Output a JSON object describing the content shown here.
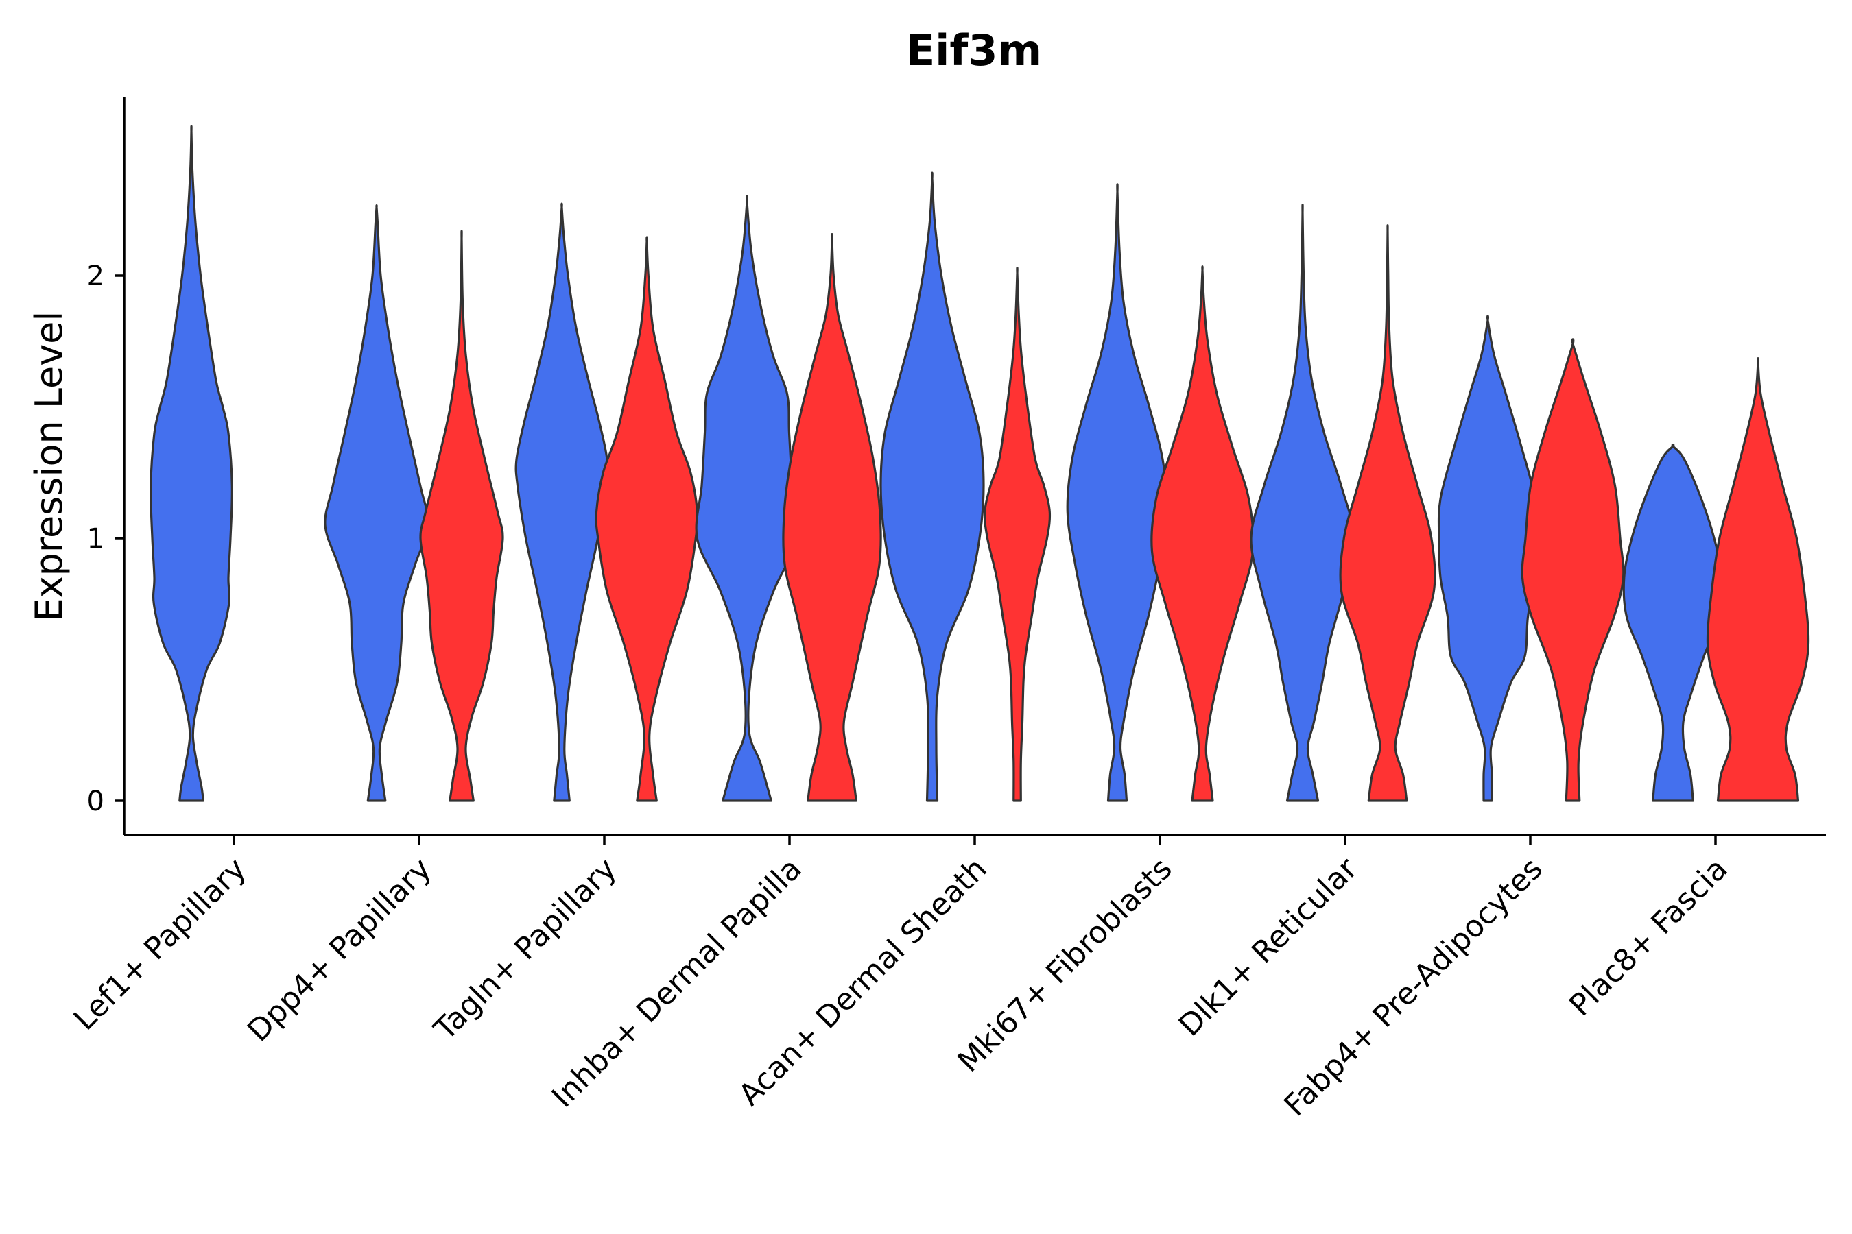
{
  "chart_data": {
    "type": "violin",
    "title": "Eif3m",
    "xlabel": "",
    "ylabel": "Expression Level",
    "ylim": [
      -0.13,
      2.7
    ],
    "yticks": [
      0,
      1,
      2
    ],
    "grid": false,
    "legend": "none",
    "colors": {
      "group_a": "#4470EE",
      "group_b": "#FF3333",
      "outline": "#333333"
    },
    "categories": [
      "Lef1+ Papillary",
      "Dpp4+ Papillary",
      "Tagln+ Papillary",
      "Inhba+ Dermal Papilla",
      "Acan+ Dermal Sheath",
      "Mki67+ Fibroblasts",
      "Dlk1+ Reticular",
      "Fabp4+ Pre-Adipocytes",
      "Plac8+ Fascia"
    ],
    "violins": [
      {
        "category": "Lef1+ Papillary",
        "group": "a",
        "max": 2.55,
        "profile": [
          [
            0.0,
            0.23
          ],
          [
            0.05,
            0.2
          ],
          [
            0.15,
            0.1
          ],
          [
            0.25,
            0.03
          ],
          [
            0.35,
            0.1
          ],
          [
            0.5,
            0.3
          ],
          [
            0.6,
            0.55
          ],
          [
            0.75,
            0.73
          ],
          [
            0.85,
            0.72
          ],
          [
            1.0,
            0.76
          ],
          [
            1.2,
            0.79
          ],
          [
            1.4,
            0.72
          ],
          [
            1.5,
            0.61
          ],
          [
            1.6,
            0.48
          ],
          [
            1.8,
            0.32
          ],
          [
            2.0,
            0.18
          ],
          [
            2.2,
            0.08
          ],
          [
            2.4,
            0.02
          ],
          [
            2.55,
            0.0
          ]
        ]
      },
      {
        "category": "Dpp4+ Papillary",
        "group": "a",
        "max": 2.26,
        "profile": [
          [
            0.0,
            0.17
          ],
          [
            0.1,
            0.1
          ],
          [
            0.2,
            0.06
          ],
          [
            0.3,
            0.18
          ],
          [
            0.45,
            0.4
          ],
          [
            0.6,
            0.48
          ],
          [
            0.75,
            0.52
          ],
          [
            0.9,
            0.75
          ],
          [
            1.05,
            1.0
          ],
          [
            1.2,
            0.85
          ],
          [
            1.4,
            0.62
          ],
          [
            1.6,
            0.4
          ],
          [
            1.8,
            0.22
          ],
          [
            2.0,
            0.08
          ],
          [
            2.2,
            0.02
          ],
          [
            2.26,
            0.0
          ]
        ]
      },
      {
        "category": "Dpp4+ Papillary",
        "group": "b",
        "max": 2.14,
        "profile": [
          [
            0.0,
            0.23
          ],
          [
            0.08,
            0.17
          ],
          [
            0.2,
            0.08
          ],
          [
            0.32,
            0.2
          ],
          [
            0.45,
            0.42
          ],
          [
            0.6,
            0.58
          ],
          [
            0.72,
            0.62
          ],
          [
            0.85,
            0.68
          ],
          [
            1.0,
            0.8
          ],
          [
            1.1,
            0.7
          ],
          [
            1.3,
            0.45
          ],
          [
            1.5,
            0.22
          ],
          [
            1.7,
            0.08
          ],
          [
            1.9,
            0.02
          ],
          [
            2.14,
            0.0
          ]
        ]
      },
      {
        "category": "Tagln+ Papillary",
        "group": "a",
        "max": 2.26,
        "profile": [
          [
            0.0,
            0.15
          ],
          [
            0.1,
            0.1
          ],
          [
            0.2,
            0.05
          ],
          [
            0.4,
            0.12
          ],
          [
            0.6,
            0.28
          ],
          [
            0.8,
            0.48
          ],
          [
            1.0,
            0.7
          ],
          [
            1.2,
            0.86
          ],
          [
            1.3,
            0.88
          ],
          [
            1.45,
            0.72
          ],
          [
            1.6,
            0.52
          ],
          [
            1.8,
            0.28
          ],
          [
            2.0,
            0.12
          ],
          [
            2.15,
            0.04
          ],
          [
            2.26,
            0.0
          ]
        ]
      },
      {
        "category": "Tagln+ Papillary",
        "group": "b",
        "max": 2.13,
        "profile": [
          [
            0.0,
            0.19
          ],
          [
            0.1,
            0.12
          ],
          [
            0.25,
            0.05
          ],
          [
            0.4,
            0.18
          ],
          [
            0.6,
            0.45
          ],
          [
            0.8,
            0.78
          ],
          [
            1.0,
            0.95
          ],
          [
            1.1,
            0.98
          ],
          [
            1.25,
            0.85
          ],
          [
            1.4,
            0.58
          ],
          [
            1.6,
            0.35
          ],
          [
            1.8,
            0.12
          ],
          [
            2.0,
            0.03
          ],
          [
            2.13,
            0.0
          ]
        ]
      },
      {
        "category": "Inhba+ Dermal Papilla",
        "group": "a",
        "max": 2.28,
        "profile": [
          [
            0.0,
            0.47
          ],
          [
            0.05,
            0.4
          ],
          [
            0.15,
            0.25
          ],
          [
            0.25,
            0.05
          ],
          [
            0.4,
            0.04
          ],
          [
            0.6,
            0.18
          ],
          [
            0.8,
            0.52
          ],
          [
            1.0,
            0.97
          ],
          [
            1.2,
            0.88
          ],
          [
            1.4,
            0.82
          ],
          [
            1.55,
            0.78
          ],
          [
            1.7,
            0.5
          ],
          [
            1.9,
            0.25
          ],
          [
            2.1,
            0.08
          ],
          [
            2.28,
            0.0
          ]
        ]
      },
      {
        "category": "Inhba+ Dermal Papilla",
        "group": "b",
        "max": 2.14,
        "profile": [
          [
            0.0,
            0.47
          ],
          [
            0.1,
            0.4
          ],
          [
            0.2,
            0.28
          ],
          [
            0.3,
            0.23
          ],
          [
            0.45,
            0.4
          ],
          [
            0.7,
            0.68
          ],
          [
            0.9,
            0.92
          ],
          [
            1.1,
            0.93
          ],
          [
            1.3,
            0.8
          ],
          [
            1.5,
            0.58
          ],
          [
            1.7,
            0.32
          ],
          [
            1.85,
            0.12
          ],
          [
            2.0,
            0.03
          ],
          [
            2.14,
            0.0
          ]
        ]
      },
      {
        "category": "Acan+ Dermal Sheath",
        "group": "a",
        "max": 2.37,
        "profile": [
          [
            0.0,
            0.1
          ],
          [
            0.2,
            0.08
          ],
          [
            0.4,
            0.1
          ],
          [
            0.6,
            0.28
          ],
          [
            0.8,
            0.7
          ],
          [
            1.0,
            0.92
          ],
          [
            1.2,
            1.0
          ],
          [
            1.4,
            0.92
          ],
          [
            1.6,
            0.65
          ],
          [
            1.8,
            0.38
          ],
          [
            2.0,
            0.18
          ],
          [
            2.2,
            0.05
          ],
          [
            2.37,
            0.0
          ]
        ]
      },
      {
        "category": "Acan+ Dermal Sheath",
        "group": "b",
        "max": 2.01,
        "profile": [
          [
            0.0,
            0.07
          ],
          [
            0.15,
            0.07
          ],
          [
            0.3,
            0.1
          ],
          [
            0.45,
            0.12
          ],
          [
            0.55,
            0.16
          ],
          [
            0.7,
            0.28
          ],
          [
            0.85,
            0.4
          ],
          [
            1.0,
            0.58
          ],
          [
            1.1,
            0.63
          ],
          [
            1.2,
            0.52
          ],
          [
            1.3,
            0.35
          ],
          [
            1.5,
            0.2
          ],
          [
            1.7,
            0.08
          ],
          [
            1.85,
            0.03
          ],
          [
            2.01,
            0.0
          ]
        ]
      },
      {
        "category": "Mki67+ Fibroblasts",
        "group": "a",
        "max": 2.32,
        "profile": [
          [
            0.0,
            0.18
          ],
          [
            0.1,
            0.14
          ],
          [
            0.2,
            0.06
          ],
          [
            0.3,
            0.12
          ],
          [
            0.5,
            0.32
          ],
          [
            0.7,
            0.6
          ],
          [
            0.9,
            0.82
          ],
          [
            1.1,
            0.97
          ],
          [
            1.3,
            0.88
          ],
          [
            1.5,
            0.62
          ],
          [
            1.7,
            0.32
          ],
          [
            1.9,
            0.12
          ],
          [
            2.1,
            0.04
          ],
          [
            2.32,
            0.0
          ]
        ]
      },
      {
        "category": "Mki67+ Fibroblasts",
        "group": "b",
        "max": 2.02,
        "profile": [
          [
            0.0,
            0.2
          ],
          [
            0.1,
            0.14
          ],
          [
            0.2,
            0.07
          ],
          [
            0.35,
            0.18
          ],
          [
            0.55,
            0.42
          ],
          [
            0.75,
            0.72
          ],
          [
            0.95,
            0.98
          ],
          [
            1.15,
            0.9
          ],
          [
            1.35,
            0.58
          ],
          [
            1.55,
            0.28
          ],
          [
            1.75,
            0.1
          ],
          [
            1.9,
            0.03
          ],
          [
            2.02,
            0.0
          ]
        ]
      },
      {
        "category": "Dlk1+ Reticular",
        "group": "a",
        "max": 2.24,
        "profile": [
          [
            0.0,
            0.3
          ],
          [
            0.1,
            0.2
          ],
          [
            0.2,
            0.1
          ],
          [
            0.3,
            0.22
          ],
          [
            0.45,
            0.38
          ],
          [
            0.6,
            0.52
          ],
          [
            0.8,
            0.8
          ],
          [
            1.0,
            1.0
          ],
          [
            1.2,
            0.75
          ],
          [
            1.4,
            0.42
          ],
          [
            1.6,
            0.18
          ],
          [
            1.8,
            0.06
          ],
          [
            2.0,
            0.02
          ],
          [
            2.24,
            0.0
          ]
        ]
      },
      {
        "category": "Dlk1+ Reticular",
        "group": "b",
        "max": 2.17,
        "profile": [
          [
            0.0,
            0.37
          ],
          [
            0.1,
            0.3
          ],
          [
            0.2,
            0.15
          ],
          [
            0.3,
            0.24
          ],
          [
            0.45,
            0.42
          ],
          [
            0.6,
            0.58
          ],
          [
            0.8,
            0.9
          ],
          [
            1.0,
            0.85
          ],
          [
            1.2,
            0.58
          ],
          [
            1.4,
            0.3
          ],
          [
            1.6,
            0.1
          ],
          [
            1.8,
            0.03
          ],
          [
            2.0,
            0.01
          ],
          [
            2.17,
            0.0
          ]
        ]
      },
      {
        "category": "Fabp4+ Pre-Adipocytes",
        "group": "a",
        "max": 1.83,
        "profile": [
          [
            0.0,
            0.08
          ],
          [
            0.1,
            0.08
          ],
          [
            0.2,
            0.06
          ],
          [
            0.3,
            0.2
          ],
          [
            0.45,
            0.45
          ],
          [
            0.55,
            0.72
          ],
          [
            0.7,
            0.78
          ],
          [
            0.85,
            0.92
          ],
          [
            1.0,
            0.95
          ],
          [
            1.15,
            0.92
          ],
          [
            1.35,
            0.65
          ],
          [
            1.55,
            0.35
          ],
          [
            1.7,
            0.12
          ],
          [
            1.83,
            0.0
          ]
        ]
      },
      {
        "category": "Fabp4+ Pre-Adipocytes",
        "group": "b",
        "max": 1.74,
        "profile": [
          [
            0.0,
            0.13
          ],
          [
            0.15,
            0.11
          ],
          [
            0.3,
            0.2
          ],
          [
            0.5,
            0.42
          ],
          [
            0.7,
            0.8
          ],
          [
            0.85,
            0.98
          ],
          [
            1.0,
            0.92
          ],
          [
            1.2,
            0.82
          ],
          [
            1.4,
            0.55
          ],
          [
            1.6,
            0.22
          ],
          [
            1.74,
            0.0
          ]
        ]
      },
      {
        "category": "Plac8+ Fascia",
        "group": "a",
        "max": 1.35,
        "profile": [
          [
            0.0,
            0.39
          ],
          [
            0.1,
            0.34
          ],
          [
            0.2,
            0.22
          ],
          [
            0.3,
            0.2
          ],
          [
            0.4,
            0.34
          ],
          [
            0.55,
            0.6
          ],
          [
            0.7,
            0.9
          ],
          [
            0.85,
            0.95
          ],
          [
            1.0,
            0.8
          ],
          [
            1.15,
            0.55
          ],
          [
            1.3,
            0.22
          ],
          [
            1.35,
            0.0
          ]
        ]
      },
      {
        "category": "Plac8+ Fascia",
        "group": "b",
        "max": 1.67,
        "profile": [
          [
            0.0,
            0.78
          ],
          [
            0.1,
            0.72
          ],
          [
            0.2,
            0.55
          ],
          [
            0.3,
            0.58
          ],
          [
            0.45,
            0.85
          ],
          [
            0.6,
            0.98
          ],
          [
            0.8,
            0.9
          ],
          [
            1.0,
            0.75
          ],
          [
            1.2,
            0.48
          ],
          [
            1.4,
            0.22
          ],
          [
            1.55,
            0.05
          ],
          [
            1.67,
            0.0
          ]
        ]
      }
    ]
  }
}
